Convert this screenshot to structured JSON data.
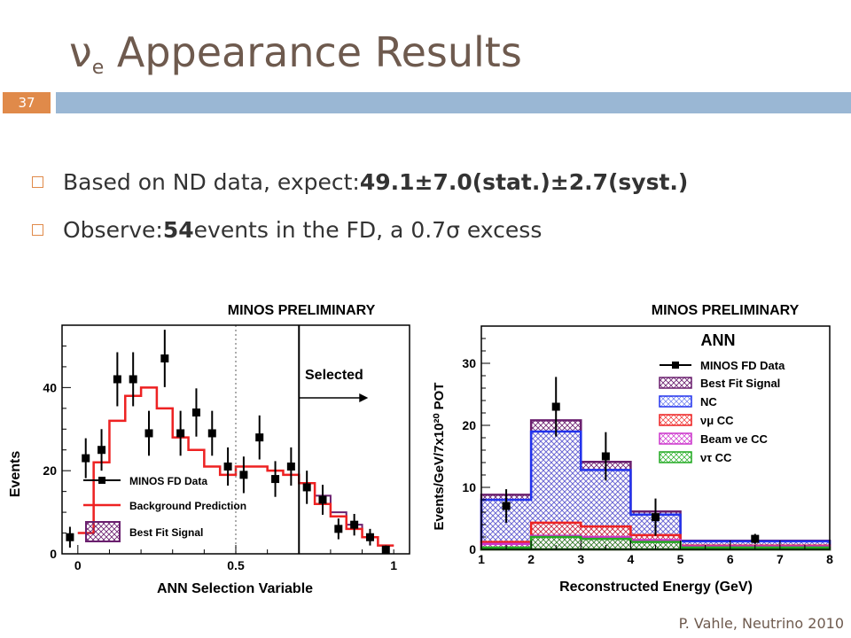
{
  "slide": {
    "title_main": "ν",
    "title_sub": "e",
    "title_rest": " Appearance Results",
    "number": "37",
    "footer": "P. Vahle, Neutrino 2010",
    "bullets": [
      {
        "text": "Based on ND data, expect: ",
        "bold": "49.1±7.0(stat.)±2.7(syst.)",
        "after": ""
      },
      {
        "text": "Observe: ",
        "bold": "54",
        "after": " events in the FD, a 0.7σ excess"
      }
    ]
  },
  "colors": {
    "data": "#000000",
    "background": "#ee2222",
    "signal": "#6a1f6e",
    "nc": "#2233ee",
    "numu": "#ee2222",
    "beam_nue": "#cc33cc",
    "nutau": "#22aa22"
  },
  "chart_data": [
    {
      "type": "histogram",
      "title": "MINOS PRELIMINARY",
      "xlabel": "ANN Selection Variable",
      "ylabel": "Events",
      "xlim": [
        -0.05,
        1.05
      ],
      "ylim": [
        0,
        55
      ],
      "xticks": [
        "0",
        "0.5",
        "1"
      ],
      "yticks": [
        "0",
        "20",
        "40"
      ],
      "annotation": "Selected",
      "cut_value": 0.7,
      "legend": [
        "MINOS FD Data",
        "Background Prediction",
        "Best Fit Signal"
      ],
      "bin_edges": [
        0,
        0.05,
        0.1,
        0.15,
        0.2,
        0.25,
        0.3,
        0.35,
        0.4,
        0.45,
        0.5,
        0.55,
        0.6,
        0.65,
        0.7,
        0.75,
        0.8,
        0.85,
        0.9,
        0.95,
        1.0
      ],
      "background": [
        5,
        22,
        32,
        38,
        40,
        35,
        28,
        25,
        21,
        19,
        21,
        21,
        20,
        19,
        17,
        12,
        9,
        6,
        4,
        2
      ],
      "signal_top": [
        5,
        22,
        32,
        38,
        40,
        35,
        28,
        25,
        21,
        19,
        21,
        21,
        20,
        19,
        17,
        14,
        10,
        7,
        4,
        2
      ],
      "data_x": [
        -0.025,
        0.025,
        0.075,
        0.125,
        0.175,
        0.225,
        0.275,
        0.325,
        0.375,
        0.425,
        0.475,
        0.525,
        0.575,
        0.625,
        0.675,
        0.725,
        0.775,
        0.825,
        0.875,
        0.925,
        0.975
      ],
      "data_y": [
        4,
        23,
        25,
        42,
        42,
        29,
        47,
        29,
        34,
        29,
        21,
        19,
        28,
        18,
        21,
        16,
        13,
        6,
        7,
        4,
        1
      ],
      "data_err": [
        2.5,
        4.8,
        5.0,
        6.5,
        6.5,
        5.4,
        6.9,
        5.4,
        5.8,
        5.4,
        4.6,
        4.4,
        5.3,
        4.3,
        4.6,
        4.0,
        3.6,
        2.5,
        2.6,
        2.0,
        1.0
      ]
    },
    {
      "type": "histogram",
      "title": "MINOS PRELIMINARY",
      "subtitle": "ANN",
      "xlabel": "Reconstructed Energy (GeV)",
      "ylabel": "Events/GeV/7x10²⁰ POT",
      "xlim": [
        1,
        8
      ],
      "ylim": [
        0,
        36
      ],
      "xticks": [
        "1",
        "2",
        "3",
        "4",
        "5",
        "6",
        "7",
        "8"
      ],
      "yticks": [
        "0",
        "10",
        "20",
        "30"
      ],
      "legend": [
        "MINOS FD Data",
        "Best Fit Signal",
        "NC",
        "νμ CC",
        "Beam νe CC",
        "ντ CC"
      ],
      "bin_edges": [
        1,
        2,
        3,
        4,
        5,
        8
      ],
      "signal_top": [
        8.8,
        20.8,
        14.1,
        6.1,
        1.4
      ],
      "nc": [
        8.0,
        19.0,
        12.8,
        5.6,
        1.3
      ],
      "numu": [
        1.2,
        4.3,
        3.7,
        2.3,
        0.6
      ],
      "beam_nue": [
        0.9,
        2.2,
        2.0,
        1.5,
        0.5
      ],
      "nutau": [
        0.3,
        2.0,
        1.7,
        1.2,
        0.3
      ],
      "data_x": [
        1.5,
        2.5,
        3.5,
        4.5,
        6.5
      ],
      "data_y": [
        7,
        23,
        15,
        5.2,
        1.7
      ],
      "data_err": [
        2.7,
        4.8,
        3.9,
        3.0,
        0.8
      ]
    }
  ]
}
